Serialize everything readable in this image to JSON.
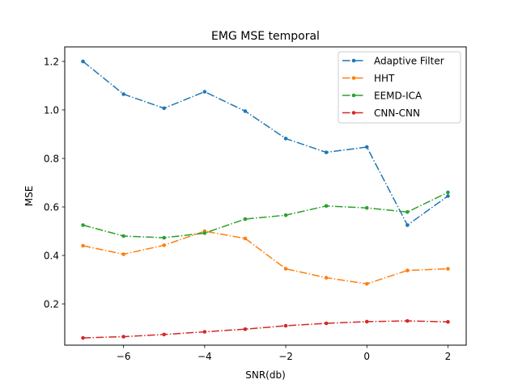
{
  "chart_data": {
    "type": "line",
    "title": "EMG MSE temporal",
    "xlabel": "SNR(db)",
    "ylabel": "MSE",
    "x": [
      -7,
      -6,
      -5,
      -4,
      -3,
      -2,
      -1,
      0,
      1,
      2
    ],
    "xlim": [
      -7.45,
      2.45
    ],
    "ylim": [
      0.03,
      1.26
    ],
    "xticks": [
      -6,
      -4,
      -2,
      0,
      2
    ],
    "yticks": [
      0.2,
      0.4,
      0.6,
      0.8,
      1.0,
      1.2
    ],
    "xtick_labels": [
      "−6",
      "−4",
      "−2",
      "0",
      "2"
    ],
    "ytick_labels": [
      "0.2",
      "0.4",
      "0.6",
      "0.8",
      "1.0",
      "1.2"
    ],
    "grid": false,
    "legend_position": "top-right",
    "series": [
      {
        "name": "Adaptive Filter",
        "color": "#1f77b4",
        "linestyle": "dashdot",
        "values": [
          1.2,
          1.065,
          1.007,
          1.075,
          0.995,
          0.882,
          0.825,
          0.847,
          0.525,
          0.645
        ]
      },
      {
        "name": "HHT",
        "color": "#ff7f0e",
        "linestyle": "dashdot",
        "values": [
          0.44,
          0.405,
          0.442,
          0.5,
          0.47,
          0.345,
          0.308,
          0.283,
          0.338,
          0.345
        ]
      },
      {
        "name": "EEMD-ICA",
        "color": "#2ca02c",
        "linestyle": "dashdot",
        "values": [
          0.525,
          0.48,
          0.473,
          0.492,
          0.55,
          0.566,
          0.604,
          0.596,
          0.579,
          0.66
        ]
      },
      {
        "name": "CNN-CNN",
        "color": "#d62728",
        "linestyle": "dashdot",
        "values": [
          0.06,
          0.065,
          0.074,
          0.085,
          0.096,
          0.11,
          0.12,
          0.127,
          0.13,
          0.126
        ]
      }
    ]
  }
}
